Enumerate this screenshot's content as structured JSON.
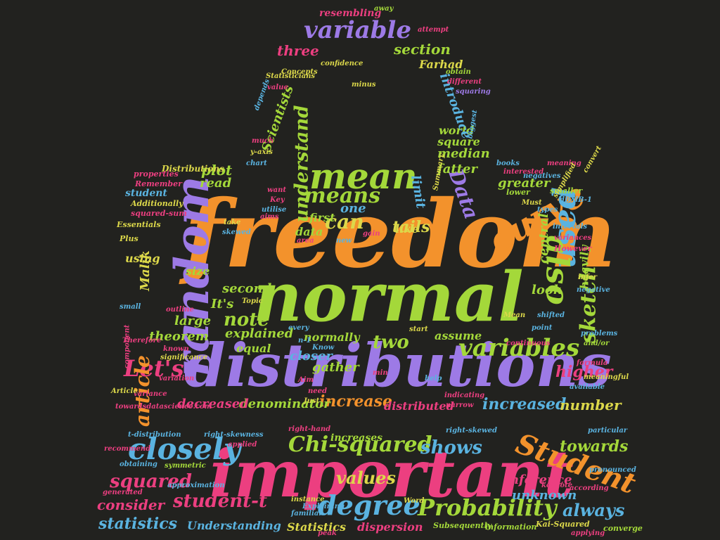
{
  "word_cloud": {
    "background": "#22221f",
    "palette": {
      "orange": "#f3922c",
      "green": "#a4d83a",
      "purple": "#9d7ae6",
      "pink": "#ec3f80",
      "blue": "#5ab3e0",
      "yellow": "#dcd84a"
    },
    "words": {
      "freedom": "freedom",
      "normal": "normal",
      "distributions": "distributions",
      "important": "important",
      "random": "random",
      "mean": "mean",
      "curve": "curve",
      "used": "used",
      "also": "also",
      "variables": "variables",
      "student": "Student",
      "chi_squared": "Chi-squared",
      "closely": "closely",
      "probability": "Probability",
      "degree": "degree",
      "variable": "variable",
      "lets": "Let's",
      "article": "article",
      "sketch": "sketch",
      "means": "means",
      "can": "can",
      "understand": "understand",
      "data": "Data",
      "note": "note",
      "tails": "tails",
      "squared": "squared",
      "student_t": "student-t",
      "towards": "towards",
      "shows": "shows",
      "always": "always",
      "statistics": "statistics",
      "values": "values",
      "higher": "higher",
      "increased": "increased",
      "increase": "increase",
      "number": "number",
      "consider": "consider",
      "inference": "inference",
      "unknown": "unknown",
      "section": "section",
      "three": "three",
      "plot": "plot",
      "read": "read",
      "two": "two",
      "one": "one",
      "first": "first",
      "data2": "data",
      "second": "second",
      "size": "size",
      "large": "large",
      "theorem": "theorem",
      "explained": "explained",
      "equal": "equal",
      "closer": "closer",
      "gather": "gather",
      "normally": "normally",
      "assume": "assume",
      "distributed": "distributed",
      "denominator": "denominator",
      "decreased": "decreased",
      "fatter": "fatter",
      "median": "median",
      "square": "square",
      "world": "world",
      "limit": "limit",
      "like": "like",
      "greater": "greater",
      "central": "central",
      "heavily": "heavily",
      "look": "look",
      "its": "It's",
      "introduce": "introduce",
      "farhad": "Farhad",
      "scientists": "Scientists",
      "resembling": "resembling",
      "understanding": "Understanding",
      "statistics2": "Statistics",
      "dispersion": "dispersion",
      "increases": "increases",
      "malik": "Malik",
      "using": "using",
      "towardsdatascience": "towardsdatascience.com",
      "variance": "variance",
      "distributions_small": "Distributions",
      "properties": "properties",
      "remember": "Remember",
      "additionally": "Additionally",
      "essentials": "Essentials",
      "plus": "Plus",
      "student_small": "student",
      "squared_sum": "squared-sum",
      "t_distribution": "t-distribution",
      "right_skewness": "right-skewness",
      "right_hand": "right-hand",
      "right_skewed": "right-skewed",
      "applied": "applied",
      "obtaining": "obtaining",
      "symmetric": "symmetric",
      "approximation": "approximation",
      "generated": "generated",
      "recommend": "recommend",
      "familiar": "familiar",
      "explaining": "Explaining",
      "instance": "instance",
      "peak": "peak",
      "word": "Word",
      "subsequently": "Subsequently",
      "information": "information",
      "kai_squared": "Kai-Squared",
      "converge": "converge",
      "applying": "applying",
      "keynote": "keynote",
      "according": "according",
      "pronounced": "pronounced",
      "particular": "particular",
      "meaningful": "meaningful",
      "available": "available",
      "formula": "formula",
      "problems": "problems",
      "continuous": "continuous",
      "point": "point",
      "mean_small": "Mean",
      "however": "However",
      "variances": "variances",
      "negative": "negative",
      "infer": "infer",
      "intervals": "intervals",
      "smaller": "smaller",
      "lower": "lower",
      "must": "Must",
      "types": "types",
      "negatives": "negatives",
      "meaning": "meaning",
      "convert": "convert",
      "simplified": "simplified",
      "books": "books",
      "interested": "interested",
      "concepts": "Concepts",
      "confidence": "confidence",
      "obtain": "obtain",
      "different": "different",
      "squaring": "squaring",
      "attempt": "attempt",
      "away": "away",
      "biggest": "biggest",
      "value": "value",
      "statisticians": "Statisticians",
      "depends": "depends",
      "much": "much",
      "y_axis": "y-axis",
      "chart": "chart",
      "want": "want",
      "key": "Key",
      "utilise": "utilise",
      "aims": "aims",
      "take": "take",
      "skewed": "skewed",
      "area": "area",
      "topic": "Topic",
      "outline": "outline",
      "known": "known",
      "significance": "significance",
      "small": "small",
      "therefore": "Therefore",
      "component": "component",
      "article_cap": "Article",
      "aim": "Aim",
      "just": "Just",
      "need": "need",
      "min": "min",
      "know": "Know",
      "start": "start",
      "help": "help",
      "narrow": "narrow",
      "indicating": "indicating",
      "minus": "minus",
      "every": "every",
      "n_1": "n-1",
      "summary": "Summary",
      "gain": "gain",
      "shifted": "shifted",
      "and_or": "and/or",
      "db_db_1": "dB/dB-1",
      "variation": "variation",
      "new": "new"
    }
  }
}
